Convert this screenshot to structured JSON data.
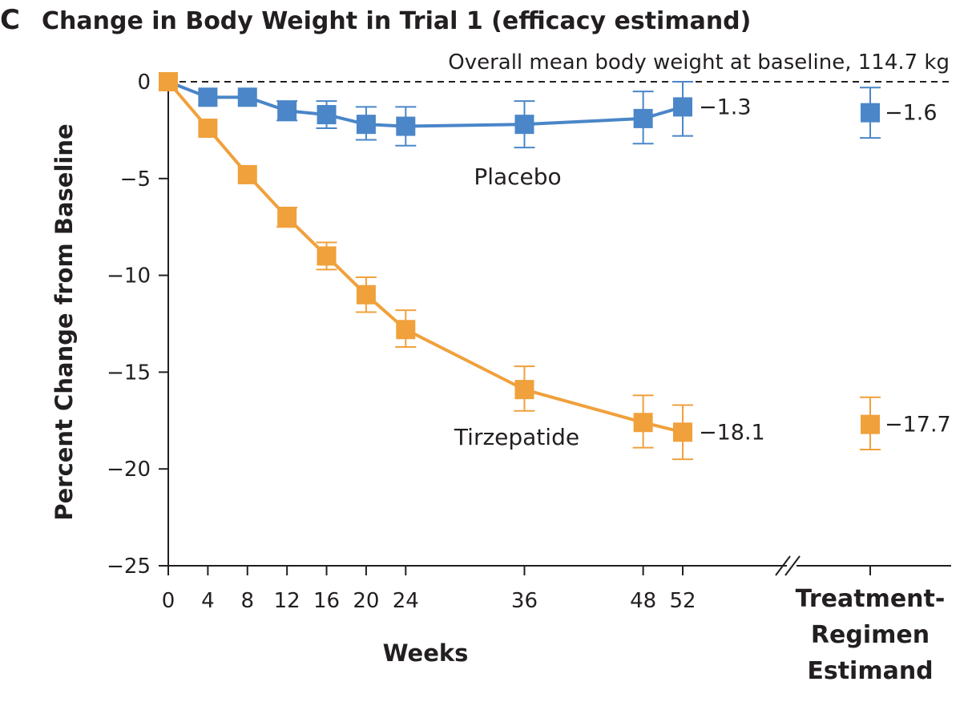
{
  "chart_data": {
    "type": "line",
    "panel_letter": "C",
    "title": "Change in Body Weight in Trial 1 (efficacy estimand)",
    "subtitle": "Overall mean body weight at baseline, 114.7 kg",
    "xlabel": "Weeks",
    "ylabel": "Percent Change from Baseline",
    "ylim": [
      -25,
      0
    ],
    "yticks": [
      0,
      -5,
      -10,
      -15,
      -20,
      -25
    ],
    "ytick_labels": [
      "0",
      "−5",
      "−10",
      "−15",
      "−20",
      "−25"
    ],
    "x": [
      0,
      4,
      8,
      12,
      16,
      20,
      24,
      36,
      48,
      52
    ],
    "xtick_labels": [
      "0",
      "4",
      "8",
      "12",
      "16",
      "20",
      "24",
      "36",
      "48",
      "52"
    ],
    "treatment_regimen_label": [
      "Treatment-",
      "Regimen",
      "Estimand"
    ],
    "series": [
      {
        "name": "Placebo",
        "color": "#4a86c8",
        "values": [
          0,
          -0.8,
          -0.8,
          -1.5,
          -1.7,
          -2.2,
          -2.3,
          -2.2,
          -1.9,
          -1.3
        ],
        "lower": [
          0,
          -0.8,
          -0.8,
          -2.0,
          -2.4,
          -3.0,
          -3.3,
          -3.4,
          -3.2,
          -2.8
        ],
        "upper": [
          0,
          -0.8,
          -0.8,
          -1.0,
          -1.0,
          -1.3,
          -1.3,
          -1.0,
          -0.5,
          0.0
        ],
        "end_label": "−1.3",
        "treatment_regimen": {
          "value": -1.6,
          "lower": -2.9,
          "upper": -0.3,
          "label": "−1.6"
        }
      },
      {
        "name": "Tirzepatide",
        "color": "#f0a13c",
        "values": [
          0,
          -2.4,
          -4.8,
          -7.0,
          -9.0,
          -11.0,
          -12.8,
          -15.9,
          -17.6,
          -18.1
        ],
        "lower": [
          0,
          -2.4,
          -4.8,
          -7.5,
          -9.7,
          -11.9,
          -13.7,
          -17.0,
          -18.9,
          -19.5
        ],
        "upper": [
          0,
          -2.4,
          -4.8,
          -6.5,
          -8.3,
          -10.1,
          -11.8,
          -14.7,
          -16.2,
          -16.7
        ],
        "end_label": "−18.1",
        "treatment_regimen": {
          "value": -17.7,
          "lower": -19.0,
          "upper": -16.3,
          "label": "−17.7"
        }
      }
    ]
  }
}
